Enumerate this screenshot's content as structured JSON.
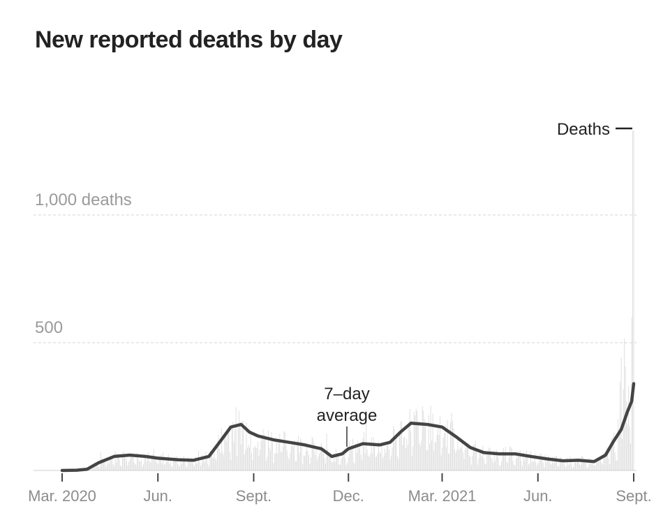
{
  "title": "New reported deaths by day",
  "chart_data": {
    "type": "bar",
    "title": "New reported deaths by day",
    "xlabel": "",
    "ylabel": "",
    "x_range": [
      "2020-03-01",
      "2021-09-01"
    ],
    "ylim": [
      0,
      1400
    ],
    "gridlines": [
      500,
      1000
    ],
    "y_tick_labels": [
      "500",
      "1,000 deaths"
    ],
    "x_ticks": [
      {
        "date": "2020-03-01",
        "label": "Mar. 2020"
      },
      {
        "date": "2020-06-01",
        "label": "Jun."
      },
      {
        "date": "2020-09-01",
        "label": "Sept."
      },
      {
        "date": "2020-12-01",
        "label": "Dec."
      },
      {
        "date": "2021-03-01",
        "label": "Mar. 2021"
      },
      {
        "date": "2021-06-01",
        "label": "Jun."
      },
      {
        "date": "2021-09-01",
        "label": "Sept."
      }
    ],
    "series": [
      {
        "name": "Deaths",
        "type": "bar",
        "color": "#dcdcdc",
        "description": "daily new reported deaths (bars)"
      },
      {
        "name": "7-day average",
        "type": "line",
        "color": "#444444",
        "points": [
          [
            "2020-03-01",
            0
          ],
          [
            "2020-03-15",
            1
          ],
          [
            "2020-03-25",
            5
          ],
          [
            "2020-04-05",
            30
          ],
          [
            "2020-04-20",
            55
          ],
          [
            "2020-05-05",
            60
          ],
          [
            "2020-05-20",
            55
          ],
          [
            "2020-06-01",
            48
          ],
          [
            "2020-06-20",
            42
          ],
          [
            "2020-07-05",
            40
          ],
          [
            "2020-07-20",
            55
          ],
          [
            "2020-08-01",
            120
          ],
          [
            "2020-08-10",
            170
          ],
          [
            "2020-08-20",
            180
          ],
          [
            "2020-08-28",
            150
          ],
          [
            "2020-09-05",
            135
          ],
          [
            "2020-09-20",
            120
          ],
          [
            "2020-10-05",
            110
          ],
          [
            "2020-10-20",
            100
          ],
          [
            "2020-11-05",
            85
          ],
          [
            "2020-11-15",
            55
          ],
          [
            "2020-11-25",
            65
          ],
          [
            "2020-12-01",
            85
          ],
          [
            "2020-12-15",
            105
          ],
          [
            "2020-12-31",
            100
          ],
          [
            "2021-01-10",
            110
          ],
          [
            "2021-01-20",
            150
          ],
          [
            "2021-01-30",
            185
          ],
          [
            "2021-02-15",
            180
          ],
          [
            "2021-03-01",
            170
          ],
          [
            "2021-03-15",
            130
          ],
          [
            "2021-03-28",
            90
          ],
          [
            "2021-04-10",
            70
          ],
          [
            "2021-04-25",
            65
          ],
          [
            "2021-05-10",
            65
          ],
          [
            "2021-05-25",
            55
          ],
          [
            "2021-06-10",
            45
          ],
          [
            "2021-06-25",
            38
          ],
          [
            "2021-07-10",
            40
          ],
          [
            "2021-07-25",
            35
          ],
          [
            "2021-08-05",
            60
          ],
          [
            "2021-08-12",
            110
          ],
          [
            "2021-08-20",
            160
          ],
          [
            "2021-08-26",
            230
          ],
          [
            "2021-08-30",
            270
          ],
          [
            "2021-09-01",
            340
          ]
        ]
      }
    ],
    "annotations": [
      {
        "text_line1": "7–day",
        "text_line2": "average",
        "target": "7-day average line near 2020-12-01"
      },
      {
        "text": "Deaths",
        "target": "daily bars, legend key at top right"
      }
    ]
  }
}
